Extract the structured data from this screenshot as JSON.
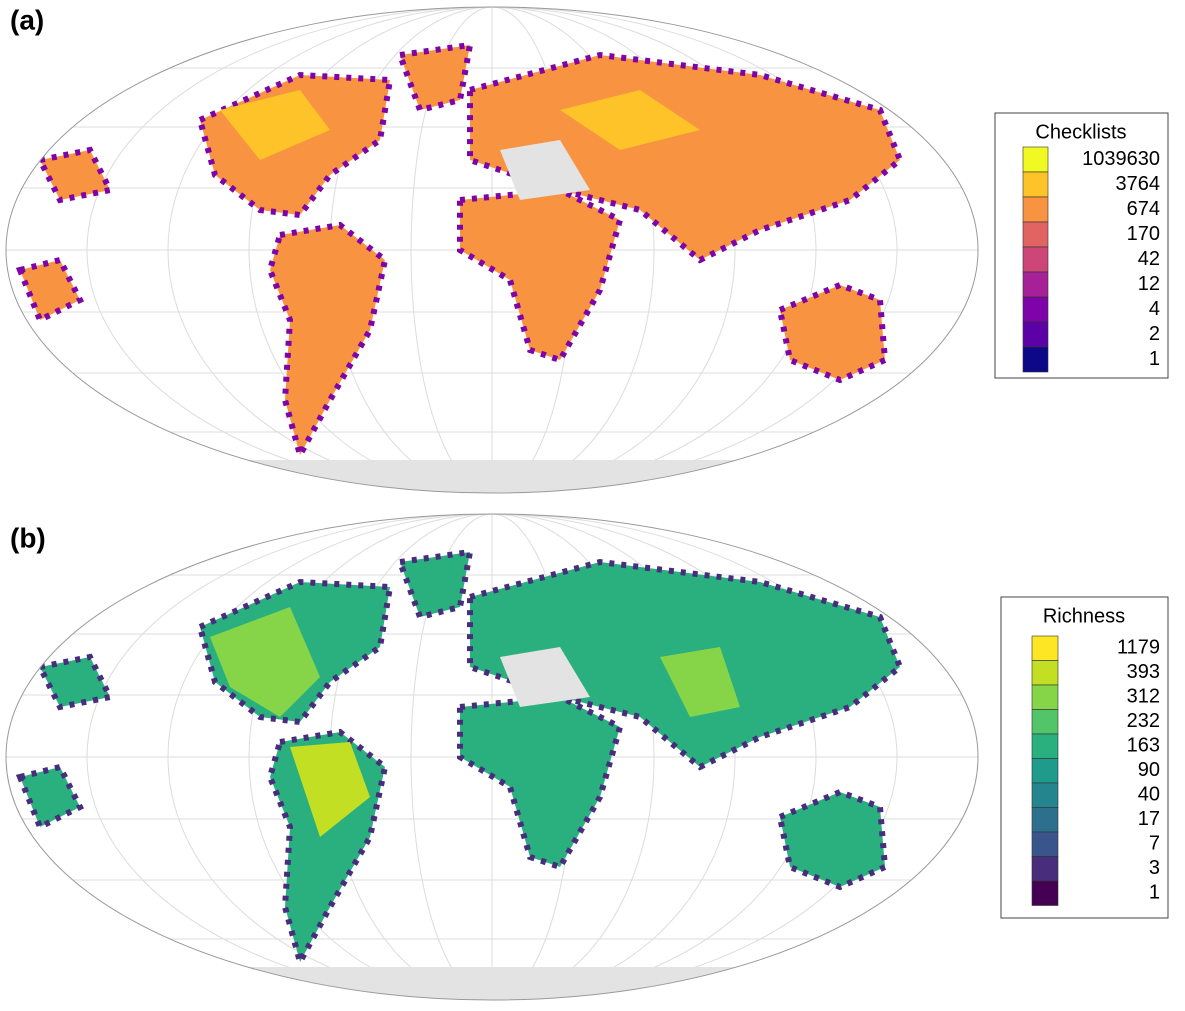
{
  "panels": [
    {
      "label": "(a)",
      "legend": {
        "title": "Checklists",
        "items": [
          {
            "value": 1039630,
            "color": "#f0f921"
          },
          {
            "value": 3764,
            "color": "#fdc328"
          },
          {
            "value": 674,
            "color": "#f89441"
          },
          {
            "value": 170,
            "color": "#e16462"
          },
          {
            "value": 42,
            "color": "#cc4778"
          },
          {
            "value": 12,
            "color": "#a62098"
          },
          {
            "value": 4,
            "color": "#7e03a8"
          },
          {
            "value": 2,
            "color": "#5c01a6"
          },
          {
            "value": 1,
            "color": "#0d0887"
          }
        ]
      }
    },
    {
      "label": "(b)",
      "legend": {
        "title": "Richness",
        "items": [
          {
            "value": 1179,
            "color": "#fde725"
          },
          {
            "value": 393,
            "color": "#c2df23"
          },
          {
            "value": 312,
            "color": "#86d549"
          },
          {
            "value": 232,
            "color": "#52c569"
          },
          {
            "value": 163,
            "color": "#2ab07f"
          },
          {
            "value": 90,
            "color": "#1e9b8a"
          },
          {
            "value": 40,
            "color": "#25858e"
          },
          {
            "value": 17,
            "color": "#2d708e"
          },
          {
            "value": 7,
            "color": "#3a548c"
          },
          {
            "value": 3,
            "color": "#472d7b"
          },
          {
            "value": 1,
            "color": "#440154"
          }
        ]
      }
    }
  ]
}
